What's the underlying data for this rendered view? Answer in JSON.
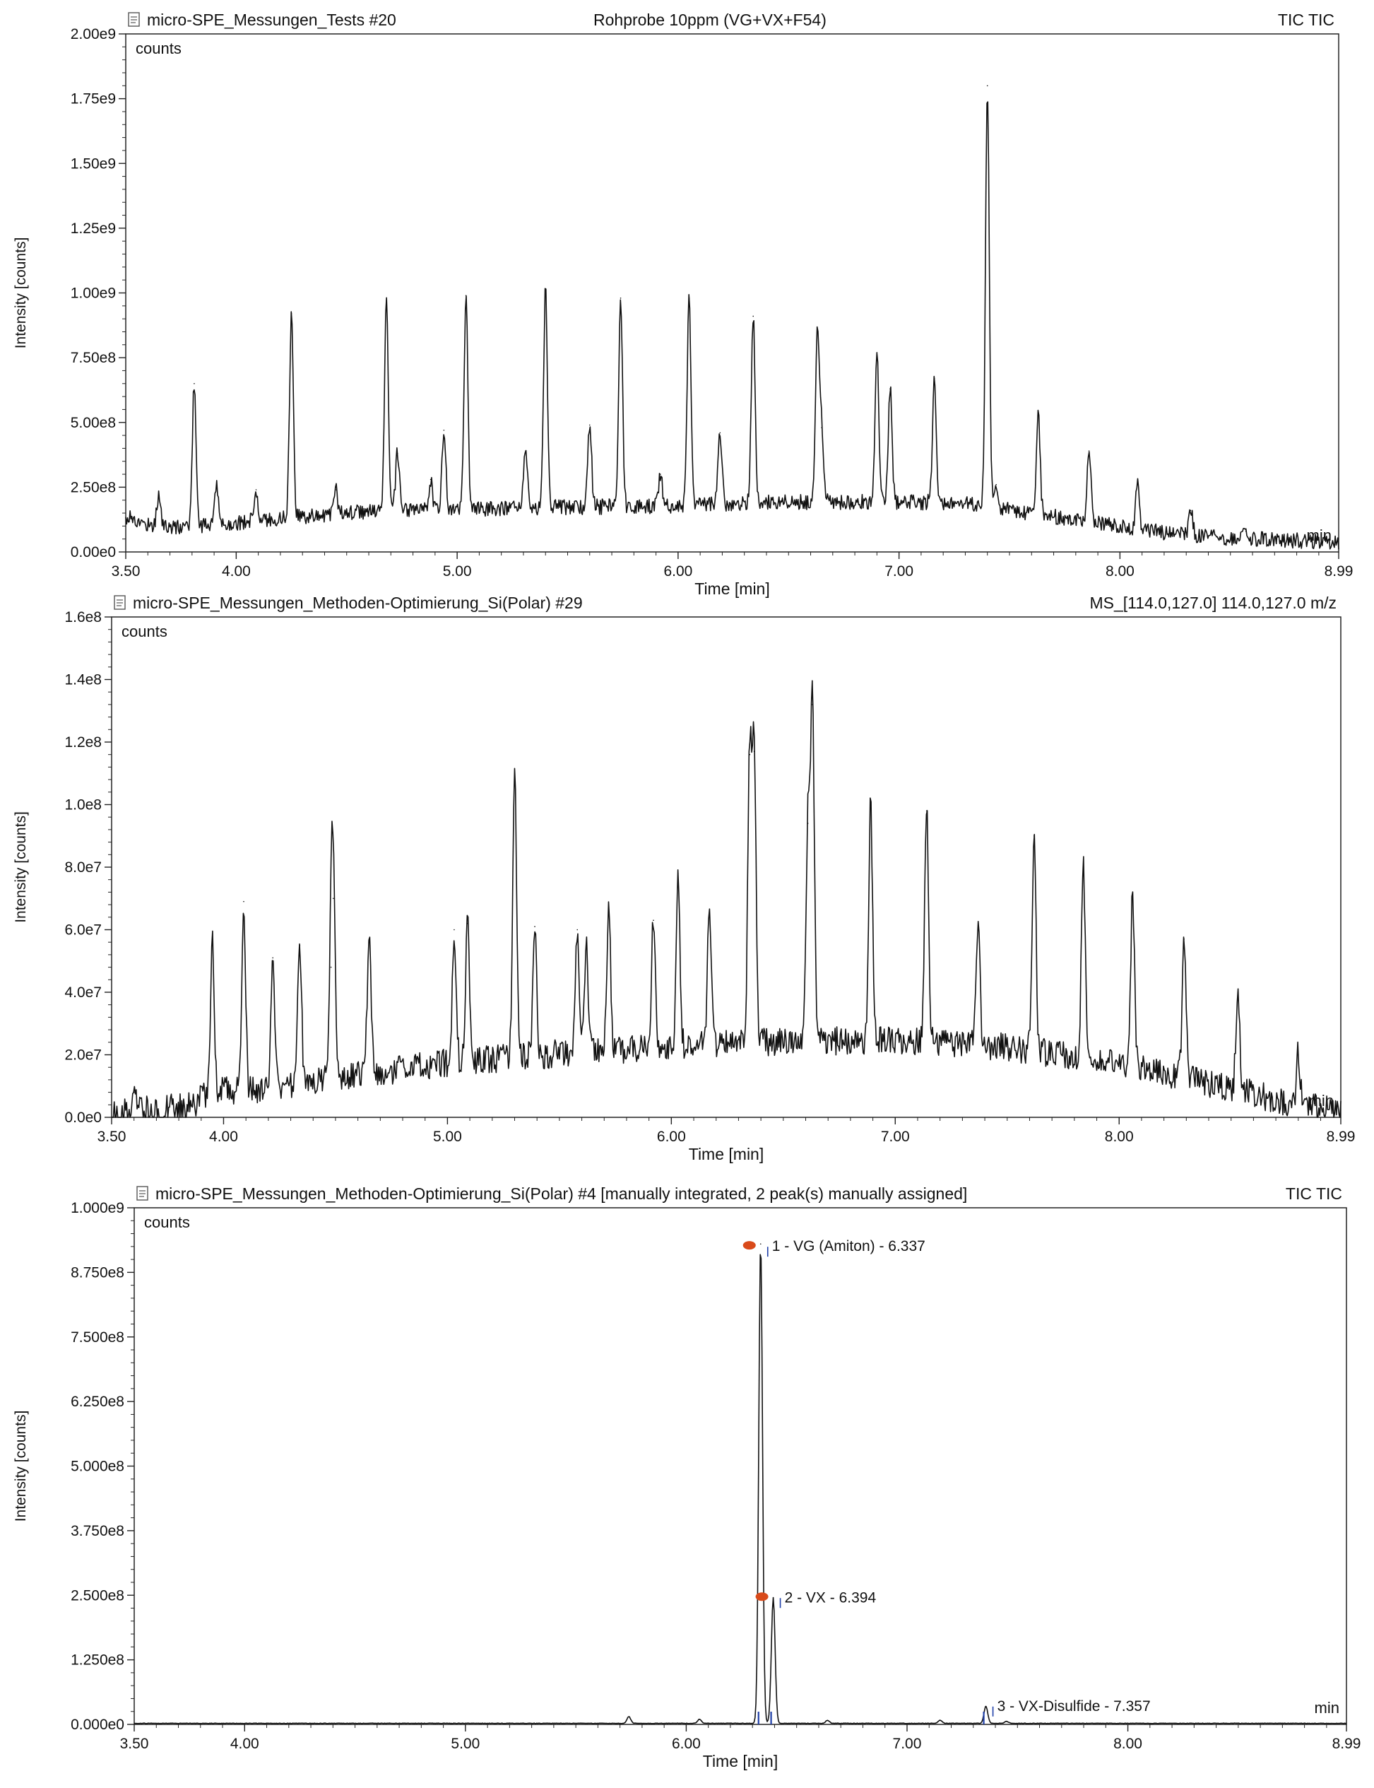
{
  "chart_data": [
    {
      "type": "line",
      "title": "micro-SPE_Messungen_Tests #20",
      "subtitle": "Rohprobe 10ppm (VG+VX+F54)",
      "trace_label": "TIC TIC",
      "counts_label": "counts",
      "min_label": "min",
      "xlabel": "Time [min]",
      "ylabel": "Intensity [counts]",
      "xlim": [
        3.5,
        8.99
      ],
      "ylim": [
        0,
        2000000000
      ],
      "x_ticks": [
        3.5,
        4.0,
        5.0,
        6.0,
        7.0,
        8.0,
        8.99
      ],
      "x_tick_labels": [
        "3.50",
        "4.00",
        "5.00",
        "6.00",
        "7.00",
        "8.00",
        "8.99"
      ],
      "y_ticks": [
        0,
        250000000,
        500000000,
        750000000,
        1000000000,
        1250000000,
        1500000000,
        1750000000,
        2000000000
      ],
      "y_tick_labels": [
        "0.00e0",
        "2.50e8",
        "5.00e8",
        "7.50e8",
        "1.00e9",
        "1.25e9",
        "1.50e9",
        "1.75e9",
        "2.00e9"
      ],
      "baseline": [
        [
          3.5,
          120000000
        ],
        [
          3.7,
          90000000
        ],
        [
          4.0,
          110000000
        ],
        [
          4.5,
          150000000
        ],
        [
          5.0,
          160000000
        ],
        [
          5.5,
          170000000
        ],
        [
          6.0,
          175000000
        ],
        [
          6.5,
          190000000
        ],
        [
          7.0,
          190000000
        ],
        [
          7.3,
          185000000
        ],
        [
          7.5,
          160000000
        ],
        [
          7.8,
          120000000
        ],
        [
          8.1,
          80000000
        ],
        [
          8.5,
          50000000
        ],
        [
          8.99,
          35000000
        ]
      ],
      "noise": 60000000,
      "peaks": [
        {
          "x": 3.52,
          "y": 140000000
        },
        {
          "x": 3.65,
          "y": 220000000
        },
        {
          "x": 3.81,
          "y": 650000000
        },
        {
          "x": 3.91,
          "y": 250000000
        },
        {
          "x": 4.09,
          "y": 240000000
        },
        {
          "x": 4.25,
          "y": 920000000
        },
        {
          "x": 4.45,
          "y": 240000000
        },
        {
          "x": 4.68,
          "y": 970000000
        },
        {
          "x": 4.73,
          "y": 380000000
        },
        {
          "x": 4.88,
          "y": 280000000
        },
        {
          "x": 4.94,
          "y": 470000000
        },
        {
          "x": 5.04,
          "y": 990000000
        },
        {
          "x": 5.31,
          "y": 390000000
        },
        {
          "x": 5.4,
          "y": 1010000000
        },
        {
          "x": 5.6,
          "y": 490000000
        },
        {
          "x": 5.74,
          "y": 980000000
        },
        {
          "x": 5.92,
          "y": 300000000
        },
        {
          "x": 6.05,
          "y": 980000000
        },
        {
          "x": 6.19,
          "y": 460000000
        },
        {
          "x": 6.34,
          "y": 910000000
        },
        {
          "x": 6.63,
          "y": 850000000
        },
        {
          "x": 6.65,
          "y": 480000000
        },
        {
          "x": 6.9,
          "y": 770000000
        },
        {
          "x": 6.96,
          "y": 630000000
        },
        {
          "x": 7.16,
          "y": 670000000
        },
        {
          "x": 7.4,
          "y": 1800000000
        },
        {
          "x": 7.44,
          "y": 260000000
        },
        {
          "x": 7.63,
          "y": 530000000
        },
        {
          "x": 7.86,
          "y": 390000000
        },
        {
          "x": 8.08,
          "y": 260000000
        },
        {
          "x": 8.32,
          "y": 160000000
        },
        {
          "x": 8.57,
          "y": 80000000
        }
      ]
    },
    {
      "type": "line",
      "title": "micro-SPE_Messungen_Methoden-Optimierung_Si(Polar) #29",
      "subtitle": "",
      "trace_label": "MS_[114.0,127.0] 114.0,127.0 m/z",
      "counts_label": "counts",
      "min_label": "min",
      "xlabel": "Time [min]",
      "ylabel": "Intensity [counts]",
      "xlim": [
        3.5,
        8.99
      ],
      "ylim": [
        0,
        160000000
      ],
      "x_ticks": [
        3.5,
        4.0,
        5.0,
        6.0,
        7.0,
        8.0,
        8.99
      ],
      "x_tick_labels": [
        "3.50",
        "4.00",
        "5.00",
        "6.00",
        "7.00",
        "8.00",
        "8.99"
      ],
      "y_ticks": [
        0,
        20000000,
        40000000,
        60000000,
        80000000,
        100000000,
        120000000,
        140000000,
        160000000
      ],
      "y_tick_labels": [
        "0.0e0",
        "2.0e7",
        "4.0e7",
        "6.0e7",
        "8.0e7",
        "1.0e8",
        "1.2e8",
        "1.4e8",
        "1.6e8"
      ],
      "baseline": [
        [
          3.5,
          1000000
        ],
        [
          3.85,
          3000000
        ],
        [
          3.95,
          8000000
        ],
        [
          4.2,
          8000000
        ],
        [
          4.5,
          12000000
        ],
        [
          5.0,
          17000000
        ],
        [
          5.5,
          20000000
        ],
        [
          6.0,
          22000000
        ],
        [
          6.5,
          24000000
        ],
        [
          7.0,
          24000000
        ],
        [
          7.5,
          22000000
        ],
        [
          8.0,
          17000000
        ],
        [
          8.3,
          12000000
        ],
        [
          8.6,
          7000000
        ],
        [
          8.8,
          3000000
        ],
        [
          8.99,
          2000000
        ]
      ],
      "noise": 9000000,
      "peaks": [
        {
          "x": 3.6,
          "y": 8000000
        },
        {
          "x": 3.77,
          "y": 6000000
        },
        {
          "x": 3.95,
          "y": 57000000
        },
        {
          "x": 4.09,
          "y": 69000000
        },
        {
          "x": 4.22,
          "y": 51000000
        },
        {
          "x": 4.34,
          "y": 55000000
        },
        {
          "x": 4.48,
          "y": 48000000
        },
        {
          "x": 4.49,
          "y": 70000000
        },
        {
          "x": 4.65,
          "y": 57000000
        },
        {
          "x": 5.03,
          "y": 60000000
        },
        {
          "x": 5.09,
          "y": 62000000
        },
        {
          "x": 5.3,
          "y": 110000000
        },
        {
          "x": 5.39,
          "y": 61000000
        },
        {
          "x": 5.58,
          "y": 60000000
        },
        {
          "x": 5.62,
          "y": 55000000
        },
        {
          "x": 5.72,
          "y": 67000000
        },
        {
          "x": 5.92,
          "y": 63000000
        },
        {
          "x": 6.03,
          "y": 78000000
        },
        {
          "x": 6.17,
          "y": 66000000
        },
        {
          "x": 6.35,
          "y": 116000000
        },
        {
          "x": 6.37,
          "y": 117000000
        },
        {
          "x": 6.61,
          "y": 94000000
        },
        {
          "x": 6.63,
          "y": 132000000
        },
        {
          "x": 6.89,
          "y": 100000000
        },
        {
          "x": 7.14,
          "y": 98000000
        },
        {
          "x": 7.37,
          "y": 60000000
        },
        {
          "x": 7.62,
          "y": 90000000
        },
        {
          "x": 7.84,
          "y": 80000000
        },
        {
          "x": 8.06,
          "y": 70000000
        },
        {
          "x": 8.29,
          "y": 57000000
        },
        {
          "x": 8.53,
          "y": 40000000
        },
        {
          "x": 8.8,
          "y": 20000000
        }
      ]
    },
    {
      "type": "line",
      "title": "micro-SPE_Messungen_Methoden-Optimierung_Si(Polar) #4 [manually integrated, 2 peak(s) manually assigned]",
      "subtitle": "",
      "trace_label": "TIC TIC",
      "counts_label": "counts",
      "min_label": "min",
      "xlabel": "Time [min]",
      "ylabel": "Intensity [counts]",
      "xlim": [
        3.5,
        8.99
      ],
      "ylim": [
        0,
        1000000000
      ],
      "x_ticks": [
        3.5,
        4.0,
        5.0,
        6.0,
        7.0,
        8.0,
        8.99
      ],
      "x_tick_labels": [
        "3.50",
        "4.00",
        "5.00",
        "6.00",
        "7.00",
        "8.00",
        "8.99"
      ],
      "y_ticks": [
        0,
        125000000,
        250000000,
        375000000,
        500000000,
        625000000,
        750000000,
        875000000,
        1000000000
      ],
      "y_tick_labels": [
        "0.000e0",
        "1.250e8",
        "2.500e8",
        "3.750e8",
        "5.000e8",
        "6.250e8",
        "7.500e8",
        "8.750e8",
        "1.000e9"
      ],
      "baseline": [
        [
          3.5,
          2000000
        ],
        [
          8.99,
          2000000
        ]
      ],
      "noise": 1500000,
      "peaks": [
        {
          "x": 5.74,
          "y": 15000000
        },
        {
          "x": 6.06,
          "y": 10000000
        },
        {
          "x": 6.337,
          "y": 930000000
        },
        {
          "x": 6.394,
          "y": 245000000
        },
        {
          "x": 6.64,
          "y": 8000000
        },
        {
          "x": 7.15,
          "y": 8000000
        },
        {
          "x": 7.357,
          "y": 35000000
        },
        {
          "x": 7.45,
          "y": 6000000
        }
      ],
      "annotations": [
        {
          "text": "1 - VG (Amiton) - 6.337",
          "x": 6.337,
          "y": 930000000
        },
        {
          "text": "2 - VX - 6.394",
          "x": 6.394,
          "y": 250000000
        },
        {
          "text": "3 - VX-Disulfide - 7.357",
          "x": 7.357,
          "y": 40000000
        }
      ],
      "annotation_color": "#d94a1a",
      "marker_color": "#1f3fa8"
    }
  ]
}
